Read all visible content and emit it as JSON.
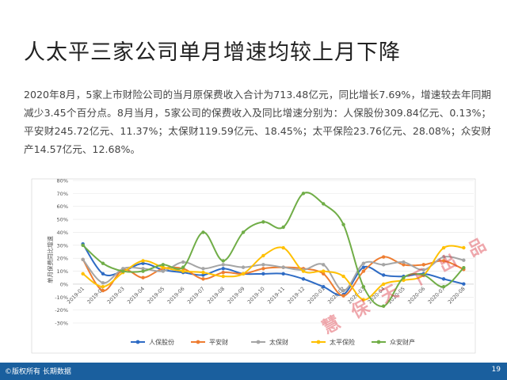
{
  "slide": {
    "title": "人太平三家公司单月增速均较上月下降",
    "intro": "2020年8月，5家上市财险公司的当月原保费收入合计为713.48亿元，同比增长7.69%，增速较去年同期减少3.45个百分点。8月当月，5家公司的保费收入及同比增速分别为：人保股份309.84亿元、0.13%；平安财245.72亿元、11.37%；太保财119.59亿元、18.45%；太平保险23.76亿元、28.08%；众安财产14.57亿元、12.68%。",
    "page_number": "19",
    "copyright": "©版权所有 长期数据",
    "watermark": "慧 保 天 下 出 品"
  },
  "chart_data": {
    "type": "line",
    "ylabel": "单月保费同比增速",
    "ylim": [
      -30,
      80
    ],
    "yticks": [
      -30,
      -20,
      -10,
      0,
      10,
      20,
      30,
      40,
      50,
      60,
      70,
      80
    ],
    "ytick_labels": [
      "-30%",
      "-20%",
      "-10%",
      "0%",
      "10%",
      "20%",
      "30%",
      "40%",
      "50%",
      "60%",
      "70%",
      "80%"
    ],
    "grid": true,
    "legend_position": "bottom",
    "x": [
      "2019-01",
      "2019-02",
      "2019-03",
      "2019-04",
      "2019-05",
      "2019-06",
      "2019-07",
      "2019-08",
      "2019-09",
      "2019-10",
      "2019-11",
      "2019-12",
      "2020-01",
      "2020-02",
      "2020-03",
      "2020-04",
      "2020-05",
      "2020-06",
      "2020-07",
      "2020-08"
    ],
    "x_labels": [
      "2019-01",
      "2019-02",
      "2019-03",
      "2019-04",
      "2019-05",
      "2019-06",
      "2019-07",
      "2019-08",
      "2019-09",
      "2019-10",
      "2019-11",
      "2019-12",
      "2020-01",
      "2020-02",
      "2020-03",
      "2020-04",
      "2020-05",
      "2020-06",
      "2020-07",
      "2020-08"
    ],
    "series": [
      {
        "name": "人保股份",
        "color": "#2e6bc4",
        "values": [
          31,
          8,
          10,
          16,
          11,
          9,
          7,
          12,
          8,
          8,
          8,
          4,
          -2,
          -8,
          13,
          7,
          6,
          8,
          4,
          0.13
        ]
      },
      {
        "name": "平安财",
        "color": "#ee7d31",
        "values": [
          19,
          -5,
          11,
          5,
          12,
          12,
          4,
          9,
          8,
          12,
          13,
          12,
          8,
          -9,
          10,
          21,
          15,
          15,
          18,
          11.37
        ]
      },
      {
        "name": "太保财",
        "color": "#a5a5a5",
        "values": [
          19,
          1,
          12,
          12,
          10,
          17,
          12,
          15,
          13,
          15,
          13,
          11,
          15,
          -5,
          16,
          15,
          17,
          11,
          21,
          18.45
        ]
      },
      {
        "name": "太平保险",
        "color": "#ffc000",
        "values": [
          8,
          -2,
          9,
          18,
          13,
          10,
          9,
          6,
          8,
          22,
          28,
          10,
          10,
          6,
          -12,
          0,
          3,
          7,
          28,
          28.08
        ]
      },
      {
        "name": "众安财产",
        "color": "#70ad47",
        "values": [
          30,
          16,
          10,
          10,
          15,
          13,
          40,
          18,
          40,
          48,
          44,
          70,
          62,
          46,
          -2,
          -17,
          5,
          7,
          -2,
          12.68
        ]
      }
    ]
  }
}
